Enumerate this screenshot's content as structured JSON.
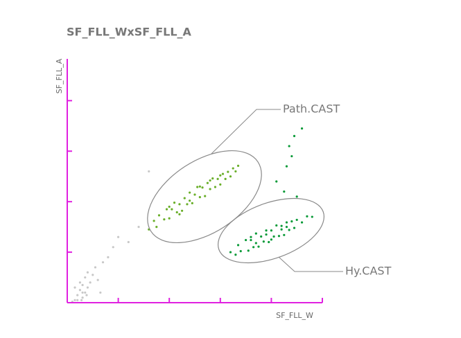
{
  "chart_data": {
    "type": "scatter",
    "title": "SF_FLL_WxSF_FLL_A",
    "x_label": "SF_FLL_W",
    "y_label": "SF_FLL_A",
    "xlim": [
      0,
      5
    ],
    "ylim": [
      0,
      4.8
    ],
    "xticks": [
      0,
      1,
      2,
      3,
      4,
      5
    ],
    "yticks": [
      0,
      1,
      2,
      3,
      4
    ],
    "series": [
      {
        "color": "#c8c8c8",
        "x": [
          0.15,
          0.2,
          0.25,
          0.3,
          0.3,
          0.35,
          0.35,
          0.4,
          0.4,
          0.45,
          0.2,
          0.25,
          0.3,
          0.5,
          0.55,
          0.6,
          0.7,
          0.8,
          0.9,
          1.0,
          1.2,
          1.4,
          0.1,
          0.15,
          0.38,
          0.28,
          1.6,
          0.65
        ],
        "values": [
          0.05,
          0.15,
          0.25,
          0.1,
          0.35,
          0.2,
          0.5,
          0.3,
          0.6,
          0.4,
          0.05,
          0.4,
          0.2,
          0.55,
          0.7,
          0.45,
          0.8,
          0.9,
          1.1,
          1.3,
          1.2,
          1.5,
          0.02,
          0.3,
          0.15,
          0.05,
          2.6,
          0.2
        ]
      },
      {
        "name": "Path.CAST",
        "color": "#6aaf2a",
        "x": [
          1.6,
          1.7,
          1.75,
          1.8,
          1.9,
          1.95,
          2.0,
          2.05,
          2.1,
          2.15,
          2.2,
          2.25,
          2.3,
          2.35,
          2.4,
          2.45,
          2.5,
          2.55,
          2.6,
          2.65,
          2.7,
          2.75,
          2.8,
          2.85,
          2.9,
          2.95,
          3.0,
          3.05,
          3.1,
          3.15,
          3.2,
          3.25,
          3.3,
          3.35,
          2.0,
          2.4,
          2.8,
          3.0,
          2.2,
          2.6
        ],
        "values": [
          1.45,
          1.62,
          1.5,
          1.73,
          1.65,
          1.85,
          1.67,
          1.85,
          1.98,
          1.79,
          1.95,
          1.82,
          2.07,
          1.95,
          2.18,
          1.97,
          2.14,
          2.29,
          2.09,
          2.28,
          2.11,
          2.37,
          2.25,
          2.46,
          2.29,
          2.45,
          2.34,
          2.55,
          2.45,
          2.59,
          2.5,
          2.66,
          2.6,
          2.71,
          1.9,
          2.02,
          2.42,
          2.52,
          1.75,
          2.3
        ]
      },
      {
        "name": "Hy.CAST",
        "color": "#0a9a38",
        "x": [
          3.2,
          3.3,
          3.35,
          3.4,
          3.5,
          3.55,
          3.6,
          3.65,
          3.7,
          3.75,
          3.8,
          3.85,
          3.9,
          3.95,
          4.0,
          4.05,
          4.1,
          4.15,
          4.2,
          4.25,
          4.3,
          4.35,
          4.4,
          4.45,
          4.5,
          4.6,
          4.7,
          4.8,
          3.6,
          3.9,
          4.2,
          4.0,
          3.7,
          4.3,
          4.1,
          4.3,
          4.45,
          4.6,
          4.4,
          4.25,
          4.5,
          4.35
        ],
        "values": [
          1.0,
          0.95,
          1.14,
          1.02,
          1.24,
          1.03,
          1.24,
          1.1,
          1.37,
          1.11,
          1.31,
          1.21,
          1.43,
          1.2,
          1.43,
          1.31,
          1.53,
          1.32,
          1.52,
          1.34,
          1.59,
          1.44,
          1.61,
          1.48,
          1.64,
          1.59,
          1.71,
          1.7,
          1.3,
          1.35,
          1.45,
          1.25,
          1.18,
          1.5,
          2.4,
          2.7,
          3.3,
          3.45,
          2.9,
          2.2,
          2.1,
          3.1
        ]
      }
    ]
  }
}
